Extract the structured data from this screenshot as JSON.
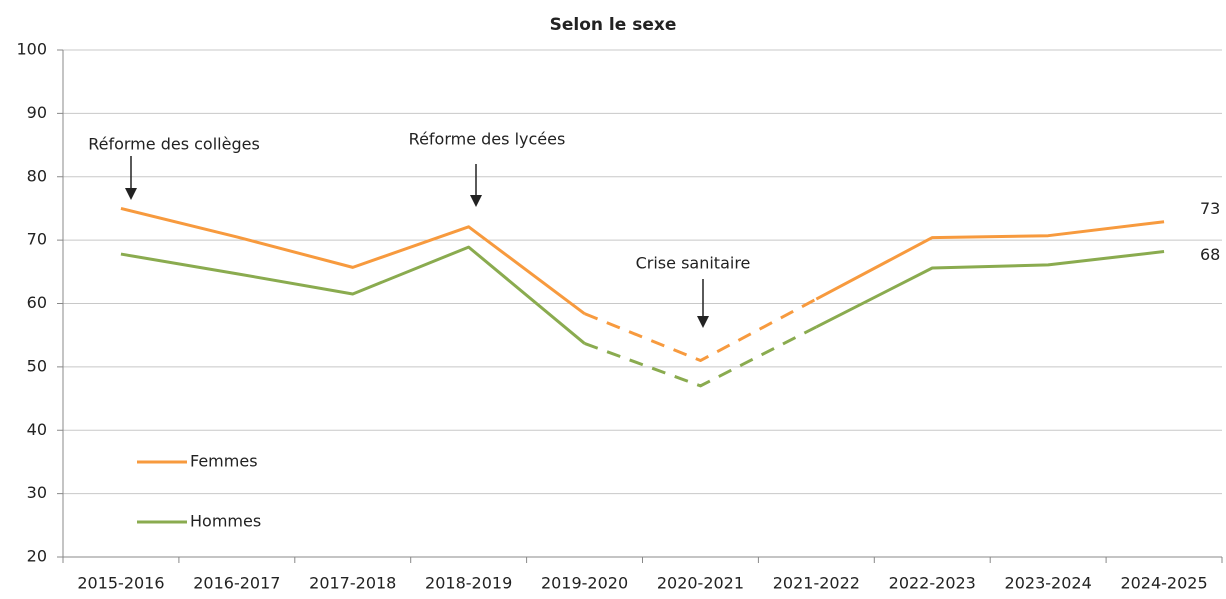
{
  "chart_data": {
    "type": "line",
    "title": "Selon le sexe",
    "categories": [
      "2015-2016",
      "2016-2017",
      "2017-2018",
      "2018-2019",
      "2019-2020",
      "2020-2021",
      "2021-2022",
      "2022-2023",
      "2023-2024",
      "2024-2025"
    ],
    "series": [
      {
        "name": "Femmes",
        "color": "#f79a3e",
        "values": [
          75.0,
          70.5,
          65.7,
          72.1,
          58.4,
          51.0,
          60.7,
          70.4,
          70.7,
          72.9
        ],
        "value_labels": [
          null,
          null,
          null,
          null,
          null,
          null,
          null,
          null,
          null,
          "73"
        ]
      },
      {
        "name": "Hommes",
        "color": "#8aab4f",
        "values": [
          67.8,
          64.7,
          61.5,
          68.9,
          53.7,
          47.0,
          56.3,
          65.6,
          66.1,
          68.2
        ],
        "value_labels": [
          null,
          null,
          null,
          null,
          null,
          null,
          null,
          null,
          null,
          "68"
        ]
      }
    ],
    "dashed_from": "2019-2020",
    "dashed_to": "2021-2022",
    "ylim": [
      20,
      100
    ],
    "yticks": [
      20,
      30,
      40,
      50,
      60,
      70,
      80,
      90,
      100
    ],
    "grid": true,
    "legend": "lower left",
    "annotations": [
      {
        "text": "Réforme des collèges",
        "category": "2015-2016"
      },
      {
        "text": "Réforme des lycées",
        "category": "2018-2019"
      },
      {
        "text": "Crise sanitaire",
        "category": "2020-2021"
      }
    ]
  }
}
